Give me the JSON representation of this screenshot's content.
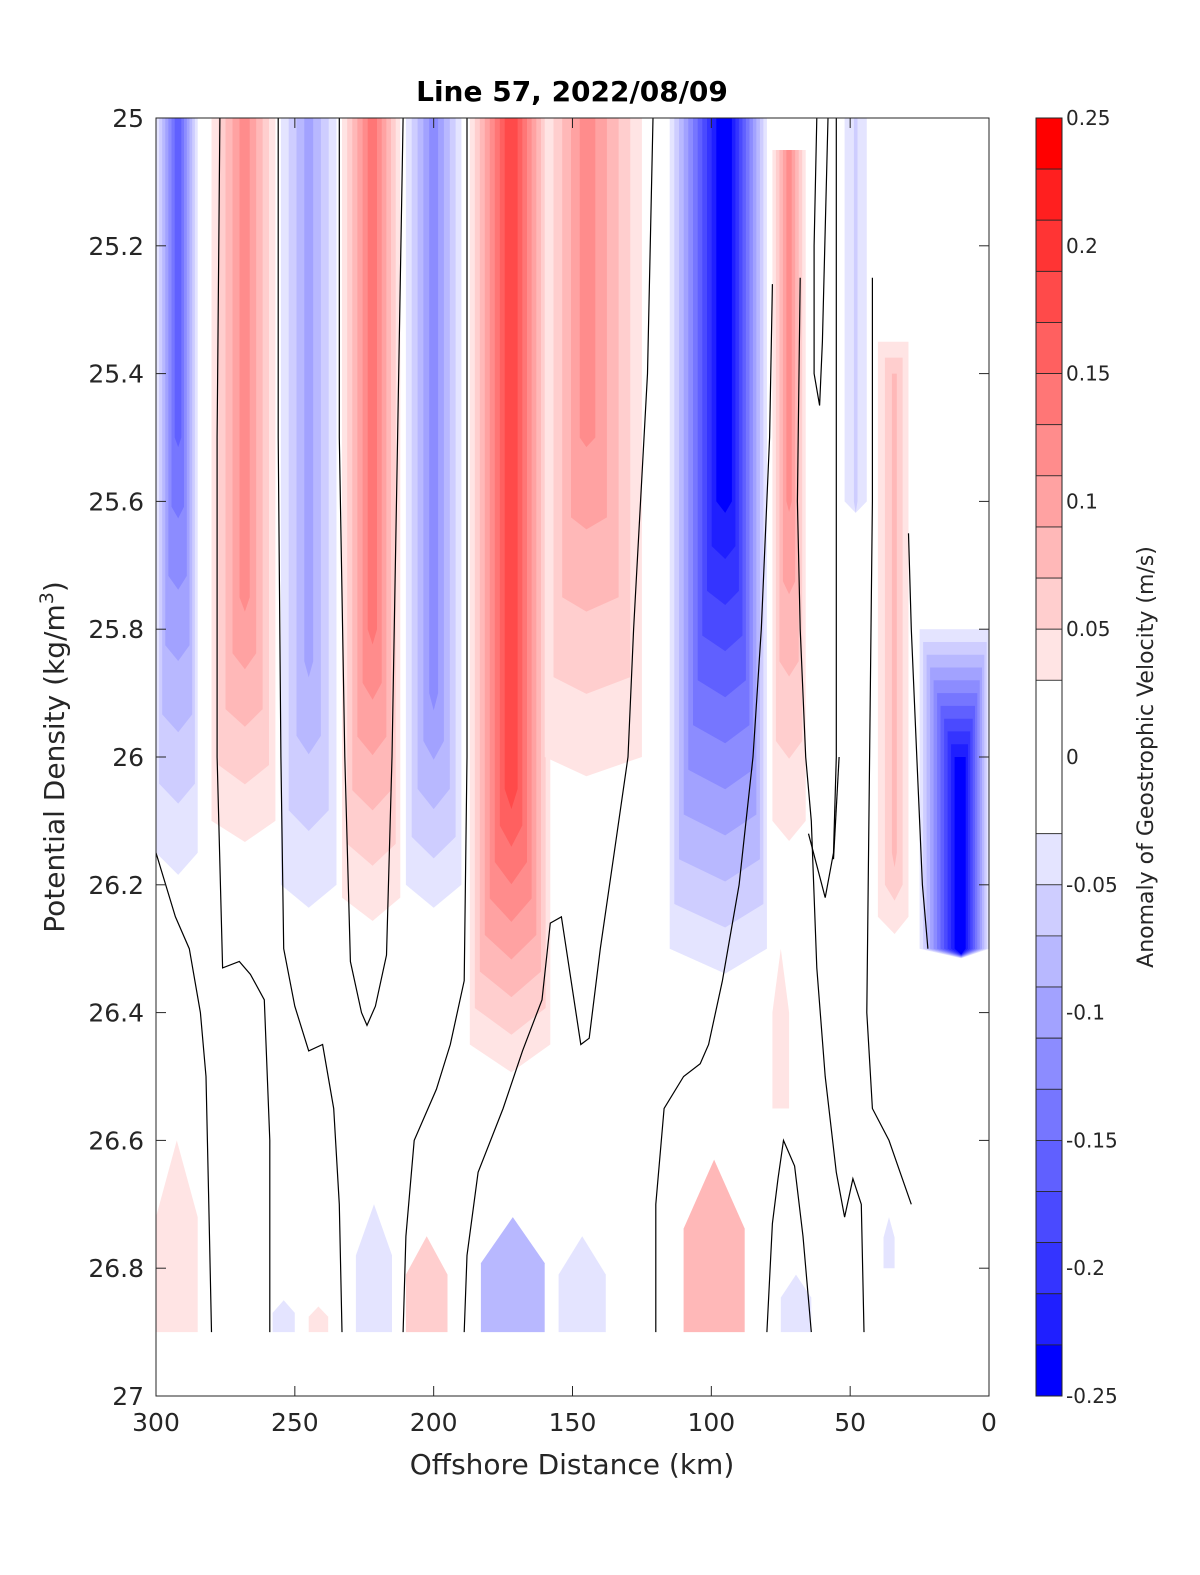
{
  "chart_data": {
    "type": "heatmap",
    "title": "Line 57, 2022/08/09",
    "xlabel": "Offshore Distance (km)",
    "ylabel_main": "Potential Density (kg/m",
    "ylabel_sup": "3",
    "ylabel_close": ")",
    "colorbar_label": "Anomaly of Geostrophic Velocity (m/s)",
    "xlim": [
      300,
      0
    ],
    "ylim": [
      25,
      27
    ],
    "x_reversed": true,
    "y_reversed": true,
    "x_ticks": [
      300,
      250,
      200,
      150,
      100,
      50,
      0
    ],
    "y_ticks": [
      {
        "value": 25,
        "label": "25"
      },
      {
        "value": 25.2,
        "label": "25.2"
      },
      {
        "value": 25.4,
        "label": "25.4"
      },
      {
        "value": 25.6,
        "label": "25.6"
      },
      {
        "value": 25.8,
        "label": "25.8"
      },
      {
        "value": 26,
        "label": "26"
      },
      {
        "value": 26.2,
        "label": "26.2"
      },
      {
        "value": 26.4,
        "label": "26.4"
      },
      {
        "value": 26.6,
        "label": "26.6"
      },
      {
        "value": 26.8,
        "label": "26.8"
      },
      {
        "value": 27,
        "label": "27"
      }
    ],
    "colorbar_ticks": [
      {
        "value": 0.25,
        "label": "0.25"
      },
      {
        "value": 0.2,
        "label": "0.2"
      },
      {
        "value": 0.15,
        "label": "0.15"
      },
      {
        "value": 0.1,
        "label": "0.1"
      },
      {
        "value": 0.05,
        "label": "0.05"
      },
      {
        "value": 0,
        "label": "0"
      },
      {
        "value": -0.05,
        "label": "-0.05"
      },
      {
        "value": -0.1,
        "label": "-0.1"
      },
      {
        "value": -0.15,
        "label": "-0.15"
      },
      {
        "value": -0.2,
        "label": "-0.2"
      },
      {
        "value": -0.25,
        "label": "-0.25"
      }
    ],
    "colorbar_range": [
      -0.25,
      0.25
    ],
    "colorbar_levels": [
      {
        "from": 0.23,
        "to": 0.25,
        "color": "#ff0000"
      },
      {
        "from": 0.21,
        "to": 0.23,
        "color": "#ff1f1f"
      },
      {
        "from": 0.19,
        "to": 0.21,
        "color": "#ff3434"
      },
      {
        "from": 0.17,
        "to": 0.19,
        "color": "#ff4a4a"
      },
      {
        "from": 0.15,
        "to": 0.17,
        "color": "#ff6060"
      },
      {
        "from": 0.13,
        "to": 0.15,
        "color": "#ff7676"
      },
      {
        "from": 0.11,
        "to": 0.13,
        "color": "#ff8c8c"
      },
      {
        "from": 0.09,
        "to": 0.11,
        "color": "#ffa2a2"
      },
      {
        "from": 0.07,
        "to": 0.09,
        "color": "#ffb8b8"
      },
      {
        "from": 0.05,
        "to": 0.07,
        "color": "#ffcece"
      },
      {
        "from": 0.03,
        "to": 0.05,
        "color": "#ffe4e4"
      },
      {
        "from": -0.03,
        "to": 0.03,
        "color": "#ffffff"
      },
      {
        "from": -0.05,
        "to": -0.03,
        "color": "#e4e4ff"
      },
      {
        "from": -0.07,
        "to": -0.05,
        "color": "#cecdff"
      },
      {
        "from": -0.09,
        "to": -0.07,
        "color": "#b8b8ff"
      },
      {
        "from": -0.11,
        "to": -0.09,
        "color": "#a2a2ff"
      },
      {
        "from": -0.13,
        "to": -0.11,
        "color": "#8c8cff"
      },
      {
        "from": -0.15,
        "to": -0.13,
        "color": "#7676ff"
      },
      {
        "from": -0.17,
        "to": -0.15,
        "color": "#6060ff"
      },
      {
        "from": -0.19,
        "to": -0.17,
        "color": "#4a4aff"
      },
      {
        "from": -0.21,
        "to": -0.19,
        "color": "#3434ff"
      },
      {
        "from": -0.23,
        "to": -0.21,
        "color": "#1f1fff"
      },
      {
        "from": -0.25,
        "to": -0.23,
        "color": "#0000ff"
      }
    ],
    "data_bottom_density": 26.9,
    "bands": [
      {
        "x_left": 300,
        "x_right": 285,
        "x_center": 292,
        "v": -0.13,
        "top": 25.0,
        "bottom": 26.15,
        "core_top": 25.0,
        "core_bottom": 25.5
      },
      {
        "x_left": 280,
        "x_right": 257,
        "x_center": 268,
        "v": 0.1,
        "top": 25.0,
        "bottom": 26.1,
        "core_top": 25.0,
        "core_bottom": 25.75
      },
      {
        "x_left": 255,
        "x_right": 235,
        "x_center": 245,
        "v": -0.07,
        "top": 25.0,
        "bottom": 26.2,
        "core_top": 25.0,
        "core_bottom": 25.85
      },
      {
        "x_left": 233,
        "x_right": 212,
        "x_center": 222,
        "v": 0.12,
        "top": 25.0,
        "bottom": 26.22,
        "core_top": 25.0,
        "core_bottom": 25.8
      },
      {
        "x_left": 210,
        "x_right": 190,
        "x_center": 200,
        "v": -0.1,
        "top": 25.0,
        "bottom": 26.2,
        "core_top": 25.0,
        "core_bottom": 25.9
      },
      {
        "x_left": 187,
        "x_right": 158,
        "x_center": 172,
        "v": 0.16,
        "top": 25.0,
        "bottom": 26.45,
        "core_top": 25.0,
        "core_bottom": 26.05
      },
      {
        "x_left": 160,
        "x_right": 125,
        "x_center": 145,
        "v": 0.1,
        "top": 25.0,
        "bottom": 26.0,
        "core_top": 25.0,
        "core_bottom": 25.5
      },
      {
        "x_left": 115,
        "x_right": 80,
        "x_center": 95,
        "v": -0.22,
        "top": 25.0,
        "bottom": 26.3,
        "core_top": 25.0,
        "core_bottom": 25.6
      },
      {
        "x_left": 78,
        "x_right": 66,
        "x_center": 72,
        "v": 0.09,
        "top": 25.05,
        "bottom": 26.1,
        "core_top": 25.05,
        "core_bottom": 25.6
      },
      {
        "x_left": 52,
        "x_right": 44,
        "x_center": 48,
        "v": -0.04,
        "top": 25.0,
        "bottom": 25.6,
        "core_top": 25.0,
        "core_bottom": 25.6
      },
      {
        "x_left": 40,
        "x_right": 29,
        "x_center": 34,
        "v": 0.06,
        "top": 25.35,
        "bottom": 26.25,
        "core_top": 25.4,
        "core_bottom": 26.15
      },
      {
        "x_left": 25,
        "x_right": 0,
        "x_center": 10,
        "v": -0.22,
        "top": 25.8,
        "bottom": 26.3,
        "core_top": 26.0,
        "core_bottom": 26.3
      }
    ],
    "deep_patches": [
      {
        "x_left": 300,
        "x_right": 285,
        "v": 0.04,
        "top": 26.6,
        "bottom": 26.9
      },
      {
        "x_left": 258,
        "x_right": 250,
        "v": -0.04,
        "top": 26.85,
        "bottom": 26.9
      },
      {
        "x_left": 245,
        "x_right": 238,
        "v": 0.04,
        "top": 26.86,
        "bottom": 26.9
      },
      {
        "x_left": 228,
        "x_right": 215,
        "v": -0.05,
        "top": 26.7,
        "bottom": 26.9
      },
      {
        "x_left": 210,
        "x_right": 195,
        "v": 0.05,
        "top": 26.75,
        "bottom": 26.9
      },
      {
        "x_left": 183,
        "x_right": 160,
        "v": -0.08,
        "top": 26.72,
        "bottom": 26.9
      },
      {
        "x_left": 155,
        "x_right": 138,
        "v": -0.05,
        "top": 26.75,
        "bottom": 26.9
      },
      {
        "x_left": 110,
        "x_right": 88,
        "v": 0.08,
        "top": 26.63,
        "bottom": 26.9
      },
      {
        "x_left": 78,
        "x_right": 72,
        "v": 0.04,
        "top": 26.3,
        "bottom": 26.55
      },
      {
        "x_left": 75,
        "x_right": 64,
        "v": -0.04,
        "top": 26.81,
        "bottom": 26.9
      },
      {
        "x_left": 38,
        "x_right": 34,
        "v": -0.04,
        "top": 26.72,
        "bottom": 26.8
      }
    ],
    "zero_contours": [
      [
        [
          300,
          26.15
        ],
        [
          293,
          26.25
        ],
        [
          288,
          26.3
        ],
        [
          284,
          26.4
        ],
        [
          282,
          26.5
        ],
        [
          281,
          26.7
        ],
        [
          280,
          26.9
        ]
      ],
      [
        [
          277,
          25.0
        ],
        [
          278,
          25.5
        ],
        [
          278,
          26.0
        ],
        [
          276,
          26.33
        ],
        [
          270,
          26.32
        ],
        [
          266,
          26.34
        ],
        [
          261,
          26.38
        ],
        [
          259,
          26.6
        ],
        [
          259,
          26.9
        ]
      ],
      [
        [
          256,
          25.0
        ],
        [
          256,
          25.5
        ],
        [
          255,
          26.0
        ],
        [
          254,
          26.3
        ],
        [
          250,
          26.39
        ],
        [
          245,
          26.46
        ],
        [
          240,
          26.45
        ],
        [
          236,
          26.55
        ],
        [
          234,
          26.7
        ],
        [
          233,
          26.9
        ]
      ],
      [
        [
          234,
          25.0
        ],
        [
          234,
          25.5
        ],
        [
          232,
          26.0
        ],
        [
          230,
          26.32
        ],
        [
          226,
          26.4
        ],
        [
          224,
          26.42
        ],
        [
          221,
          26.39
        ],
        [
          217,
          26.31
        ],
        [
          215,
          26.0
        ],
        [
          213,
          25.5
        ],
        [
          211,
          25.0
        ]
      ],
      [
        [
          211,
          26.9
        ],
        [
          210,
          26.75
        ],
        [
          207,
          26.6
        ],
        [
          199,
          26.52
        ],
        [
          194,
          26.45
        ],
        [
          189,
          26.35
        ],
        [
          188,
          26.0
        ],
        [
          188,
          25.0
        ]
      ],
      [
        [
          189,
          26.9
        ],
        [
          188,
          26.78
        ],
        [
          184,
          26.65
        ],
        [
          175,
          26.55
        ],
        [
          168,
          26.46
        ],
        [
          161,
          26.38
        ],
        [
          158,
          26.26
        ],
        [
          154,
          26.25
        ],
        [
          147,
          26.45
        ],
        [
          144,
          26.44
        ],
        [
          140,
          26.3
        ],
        [
          135,
          26.15
        ],
        [
          130,
          26.0
        ],
        [
          128,
          25.8
        ],
        [
          123,
          25.4
        ],
        [
          121,
          25.0
        ]
      ],
      [
        [
          120,
          26.9
        ],
        [
          120,
          26.7
        ],
        [
          117,
          26.55
        ],
        [
          110,
          26.5
        ],
        [
          104,
          26.48
        ],
        [
          101,
          26.45
        ],
        [
          96,
          26.35
        ],
        [
          90,
          26.2
        ],
        [
          85,
          26.0
        ],
        [
          82,
          25.8
        ],
        [
          79,
          25.5
        ],
        [
          78,
          25.26
        ]
      ],
      [
        [
          64,
          26.9
        ],
        [
          67,
          26.75
        ],
        [
          70,
          26.64
        ],
        [
          74,
          26.6
        ],
        [
          76,
          26.66
        ],
        [
          78,
          26.73
        ],
        [
          80,
          26.9
        ]
      ],
      [
        [
          62,
          25.0
        ],
        [
          63,
          25.2
        ],
        [
          63,
          25.4
        ],
        [
          61,
          25.45
        ],
        [
          60,
          25.35
        ],
        [
          58,
          25.0
        ]
      ],
      [
        [
          65,
          26.12
        ],
        [
          59,
          26.22
        ],
        [
          56,
          26.15
        ],
        [
          55,
          26.0
        ],
        [
          55,
          25.0
        ]
      ],
      [
        [
          54,
          26.0
        ],
        [
          56,
          26.16
        ]
      ],
      [
        [
          45,
          26.9
        ],
        [
          46,
          26.7
        ],
        [
          49,
          26.66
        ],
        [
          52,
          26.72
        ],
        [
          55,
          26.65
        ],
        [
          59,
          26.5
        ],
        [
          62,
          26.33
        ],
        [
          64,
          26.1
        ],
        [
          66,
          26.0
        ],
        [
          68,
          25.8
        ],
        [
          69,
          25.6
        ],
        [
          68,
          25.25
        ]
      ],
      [
        [
          42,
          25.25
        ],
        [
          42,
          25.6
        ],
        [
          43,
          26.0
        ],
        [
          44,
          26.4
        ],
        [
          42,
          26.55
        ],
        [
          36,
          26.6
        ],
        [
          32,
          26.65
        ],
        [
          28,
          26.7
        ]
      ],
      [
        [
          29,
          25.65
        ],
        [
          28,
          25.8
        ],
        [
          26,
          26.0
        ],
        [
          24,
          26.2
        ],
        [
          22,
          26.3
        ]
      ]
    ]
  }
}
